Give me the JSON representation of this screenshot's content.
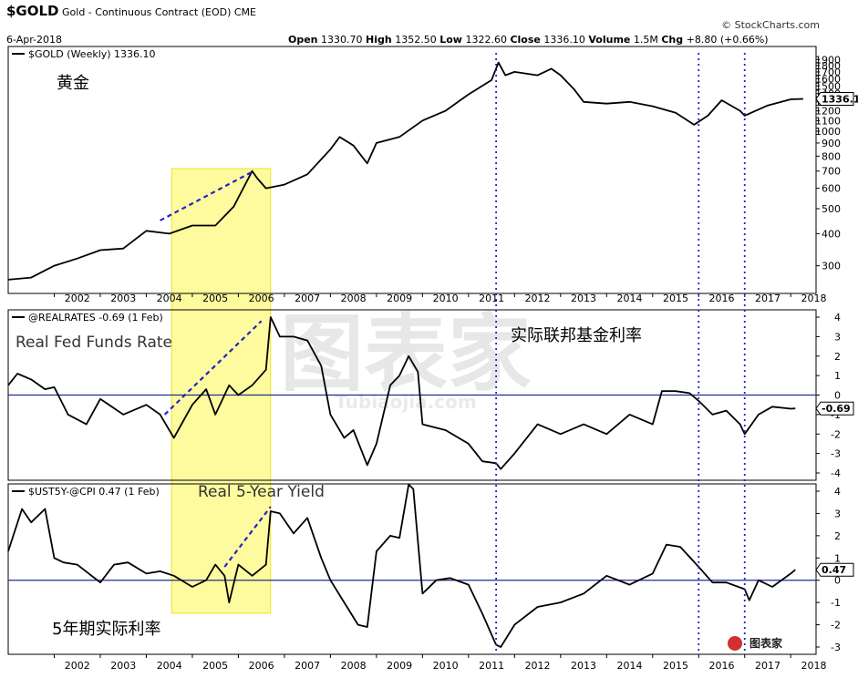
{
  "header": {
    "symbol": "$GOLD",
    "description": "Gold - Continuous Contract (EOD)",
    "exchange": "CME",
    "date": "6-Apr-2018",
    "brand": "StockCharts.com",
    "open_label": "Open",
    "open": "1330.70",
    "high_label": "High",
    "high": "1352.50",
    "low_label": "Low",
    "low": "1322.60",
    "close_label": "Close",
    "close": "1336.10",
    "volume_label": "Volume",
    "volume": "1.5M",
    "chg_label": "Chg",
    "chg": "+8.80 (+0.66%)"
  },
  "watermark": {
    "text": "图表家",
    "domain": "Tubiaojia.com"
  },
  "chart_data": [
    {
      "type": "line",
      "legend": "$GOLD (Weekly) 1336.10",
      "annotation": "黄金",
      "scale": "log",
      "ylim": [
        250,
        2000
      ],
      "yticks": [
        300,
        400,
        500,
        600,
        700,
        800,
        900,
        1000,
        1100,
        1200,
        1300,
        1400,
        1500,
        1600,
        1700,
        1800,
        1900
      ],
      "last_value_label": "1336.1",
      "x": [
        2001.0,
        2001.5,
        2002.0,
        2002.5,
        2003.0,
        2003.5,
        2004.0,
        2004.5,
        2005.0,
        2005.5,
        2005.9,
        2006.3,
        2006.4,
        2006.6,
        2007.0,
        2007.5,
        2008.0,
        2008.2,
        2008.5,
        2008.8,
        2009.0,
        2009.5,
        2010.0,
        2010.5,
        2011.0,
        2011.5,
        2011.65,
        2011.8,
        2012.0,
        2012.5,
        2012.8,
        2013.0,
        2013.3,
        2013.5,
        2014.0,
        2014.5,
        2015.0,
        2015.5,
        2015.9,
        2016.2,
        2016.5,
        2016.9,
        2017.0,
        2017.5,
        2018.0,
        2018.27
      ],
      "y": [
        265,
        270,
        300,
        320,
        345,
        350,
        410,
        400,
        430,
        430,
        510,
        700,
        660,
        600,
        620,
        680,
        850,
        950,
        880,
        750,
        900,
        950,
        1100,
        1200,
        1390,
        1580,
        1850,
        1650,
        1700,
        1650,
        1750,
        1650,
        1450,
        1300,
        1280,
        1300,
        1250,
        1180,
        1060,
        1150,
        1320,
        1200,
        1150,
        1260,
        1330,
        1336
      ]
    },
    {
      "type": "line",
      "legend": "@REALRATES -0.69 (1 Feb)",
      "annotations": [
        "Real Fed Funds Rate",
        "实际联邦基金利率"
      ],
      "ylim": [
        -4,
        4
      ],
      "yticks": [
        -4,
        -3,
        -2,
        -1,
        0,
        1,
        2,
        3,
        4
      ],
      "reference_line": 0,
      "last_value_label": "-0.69",
      "x": [
        2001.0,
        2001.2,
        2001.5,
        2001.8,
        2002.0,
        2002.3,
        2002.7,
        2003.0,
        2003.5,
        2004.0,
        2004.3,
        2004.6,
        2005.0,
        2005.3,
        2005.5,
        2005.8,
        2006.0,
        2006.3,
        2006.6,
        2006.7,
        2006.9,
        2007.2,
        2007.5,
        2007.8,
        2008.0,
        2008.3,
        2008.5,
        2008.8,
        2009.0,
        2009.3,
        2009.5,
        2009.7,
        2009.9,
        2010.0,
        2010.5,
        2011.0,
        2011.3,
        2011.6,
        2011.7,
        2012.0,
        2012.5,
        2013.0,
        2013.5,
        2014.0,
        2014.5,
        2015.0,
        2015.2,
        2015.5,
        2015.8,
        2016.0,
        2016.3,
        2016.6,
        2016.9,
        2017.0,
        2017.3,
        2017.6,
        2018.0,
        2018.1
      ],
      "y": [
        0.5,
        1.1,
        0.8,
        0.3,
        0.4,
        -1.0,
        -1.5,
        -0.2,
        -1.0,
        -0.5,
        -1.0,
        -2.2,
        -0.5,
        0.3,
        -1.0,
        0.5,
        0.0,
        0.5,
        1.3,
        4.0,
        3.0,
        3.0,
        2.8,
        1.5,
        -1.0,
        -2.2,
        -1.8,
        -3.6,
        -2.5,
        0.5,
        1.0,
        2.0,
        1.2,
        -1.5,
        -1.8,
        -2.5,
        -3.4,
        -3.5,
        -3.8,
        -3.0,
        -1.5,
        -2.0,
        -1.5,
        -2.0,
        -1.0,
        -1.5,
        0.2,
        0.2,
        0.1,
        -0.3,
        -1.0,
        -0.8,
        -1.5,
        -2.0,
        -1.0,
        -0.6,
        -0.7,
        -0.69
      ]
    },
    {
      "type": "line",
      "legend": "$UST5Y-@CPI 0.47 (1 Feb)",
      "annotations": [
        "Real 5-Year Yield",
        "5年期实际利率"
      ],
      "ylim": [
        -3,
        4
      ],
      "yticks": [
        -3,
        -2,
        -1,
        0,
        1,
        2,
        3,
        4
      ],
      "reference_line": 0,
      "last_value_label": "0.47",
      "x": [
        2001.0,
        2001.3,
        2001.5,
        2001.8,
        2002.0,
        2002.2,
        2002.5,
        2003.0,
        2003.3,
        2003.6,
        2004.0,
        2004.3,
        2004.6,
        2005.0,
        2005.3,
        2005.5,
        2005.7,
        2005.8,
        2006.0,
        2006.3,
        2006.6,
        2006.7,
        2006.9,
        2007.2,
        2007.5,
        2007.8,
        2008.0,
        2008.3,
        2008.6,
        2008.8,
        2009.0,
        2009.3,
        2009.5,
        2009.7,
        2009.8,
        2010.0,
        2010.3,
        2010.6,
        2011.0,
        2011.3,
        2011.6,
        2011.7,
        2012.0,
        2012.5,
        2013.0,
        2013.5,
        2014.0,
        2014.5,
        2015.0,
        2015.3,
        2015.6,
        2016.0,
        2016.3,
        2016.6,
        2017.0,
        2017.1,
        2017.3,
        2017.6,
        2018.0,
        2018.1
      ],
      "y": [
        1.3,
        3.2,
        2.6,
        3.2,
        1.0,
        0.8,
        0.7,
        -0.1,
        0.7,
        0.8,
        0.3,
        0.4,
        0.2,
        -0.3,
        0.0,
        0.7,
        0.2,
        -1.0,
        0.7,
        0.2,
        0.7,
        3.1,
        3.0,
        2.1,
        2.8,
        1.0,
        0.0,
        -1.0,
        -2.0,
        -2.1,
        1.3,
        2.0,
        1.9,
        4.3,
        4.1,
        -0.6,
        0.0,
        0.1,
        -0.2,
        -1.5,
        -2.9,
        -3.0,
        -2.0,
        -1.2,
        -1.0,
        -0.6,
        0.2,
        -0.2,
        0.3,
        1.6,
        1.5,
        0.6,
        -0.1,
        -0.1,
        -0.4,
        -0.9,
        0.0,
        -0.3,
        0.3,
        0.47
      ]
    }
  ],
  "x_axis": {
    "labels": [
      "2002",
      "2003",
      "2004",
      "2005",
      "2006",
      "2007",
      "2008",
      "2009",
      "2010",
      "2011",
      "2012",
      "2013",
      "2014",
      "2015",
      "2016",
      "2017",
      "2018"
    ]
  },
  "highlight_range": [
    2004.55,
    2006.7
  ],
  "vertical_markers": [
    2011.6,
    2016.0,
    2017.0
  ],
  "trendlines": [
    {
      "panel": 0,
      "x": [
        2004.3,
        2006.3
      ],
      "y": [
        450,
        695
      ]
    },
    {
      "panel": 1,
      "x": [
        2004.4,
        2006.5
      ],
      "y": [
        -1.0,
        3.8
      ]
    },
    {
      "panel": 2,
      "x": [
        2005.7,
        2006.7
      ],
      "y": [
        0.6,
        3.3
      ]
    }
  ],
  "colors": {
    "highlight_fill": "#fdfb8e",
    "highlight_stroke": "#e8e000",
    "reference_line": "#1f2c8f",
    "trendline": "#2323c8",
    "marker": "#2323c8",
    "price": "#000000"
  }
}
